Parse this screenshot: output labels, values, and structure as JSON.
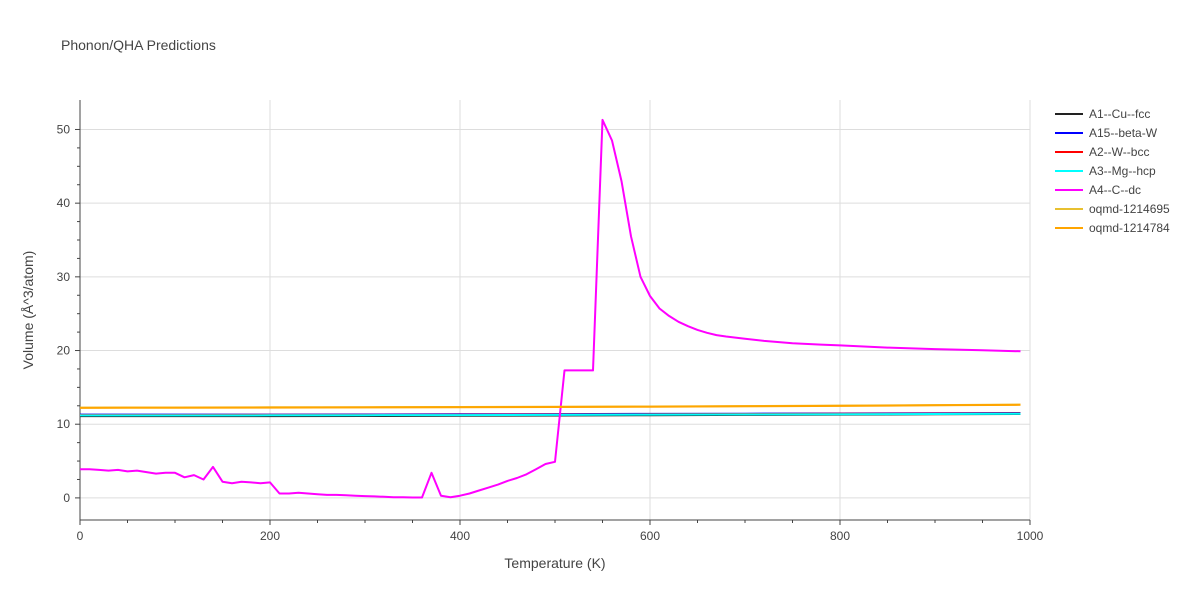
{
  "chart_data": {
    "type": "line",
    "title": "Phonon/QHA Predictions",
    "xlabel": "Temperature (K)",
    "ylabel": "Volume (Å^3/atom)",
    "xlim": [
      0,
      1000
    ],
    "ylim": [
      -3,
      54
    ],
    "x_ticks": [
      0,
      200,
      400,
      600,
      800,
      1000
    ],
    "x_tick_labels": [
      "0",
      "200",
      "400",
      "600",
      "800",
      "1000"
    ],
    "y_ticks": [
      0,
      10,
      20,
      30,
      40,
      50
    ],
    "y_tick_labels": [
      "0",
      "10",
      "20",
      "30",
      "40",
      "50"
    ],
    "grid": true,
    "legend_position": "right",
    "series": [
      {
        "name": "A1--Cu--fcc",
        "color": "#222222",
        "x": [
          0,
          100,
          200,
          300,
          400,
          500,
          600,
          700,
          800,
          900,
          990
        ],
        "y": [
          11.1,
          11.1,
          11.1,
          11.12,
          11.15,
          11.18,
          11.22,
          11.26,
          11.3,
          11.34,
          11.38
        ]
      },
      {
        "name": "A15--beta-W",
        "color": "#0000ff",
        "x": [
          0,
          100,
          200,
          300,
          400,
          500,
          600,
          700,
          800,
          900,
          990
        ],
        "y": [
          11.3,
          11.3,
          11.31,
          11.32,
          11.34,
          11.37,
          11.4,
          11.43,
          11.46,
          11.49,
          11.52
        ]
      },
      {
        "name": "A2--W--bcc",
        "color": "#ff0000",
        "x": [
          0,
          100,
          200,
          300,
          400,
          500,
          600,
          700,
          800,
          900,
          990
        ],
        "y": [
          11.25,
          11.25,
          11.26,
          11.27,
          11.29,
          11.32,
          11.35,
          11.38,
          11.41,
          11.44,
          11.47
        ]
      },
      {
        "name": "A3--Mg--hcp",
        "color": "#00ffff",
        "x": [
          0,
          100,
          200,
          300,
          400,
          500,
          600,
          700,
          800,
          900,
          990
        ],
        "y": [
          11.2,
          11.2,
          11.21,
          11.22,
          11.24,
          11.27,
          11.3,
          11.33,
          11.36,
          11.39,
          11.42
        ]
      },
      {
        "name": "A4--C--dc",
        "color": "#ff00ff",
        "x": [
          0,
          10,
          20,
          30,
          40,
          50,
          60,
          70,
          80,
          90,
          100,
          110,
          120,
          130,
          140,
          150,
          160,
          170,
          180,
          190,
          200,
          210,
          220,
          230,
          240,
          250,
          260,
          270,
          280,
          290,
          300,
          310,
          320,
          330,
          340,
          350,
          360,
          370,
          380,
          390,
          400,
          410,
          420,
          430,
          440,
          450,
          460,
          470,
          480,
          490,
          500,
          510,
          520,
          530,
          540,
          550,
          560,
          570,
          580,
          590,
          600,
          610,
          620,
          630,
          640,
          650,
          660,
          670,
          680,
          700,
          720,
          750,
          780,
          800,
          850,
          900,
          950,
          990
        ],
        "y": [
          3.9,
          3.9,
          3.8,
          3.7,
          3.8,
          3.6,
          3.7,
          3.5,
          3.3,
          3.4,
          3.4,
          2.8,
          3.1,
          2.5,
          4.2,
          2.2,
          2.0,
          2.2,
          2.1,
          2.0,
          2.1,
          0.6,
          0.6,
          0.7,
          0.6,
          0.5,
          0.4,
          0.4,
          0.35,
          0.3,
          0.25,
          0.2,
          0.15,
          0.1,
          0.08,
          0.05,
          0.05,
          3.4,
          0.3,
          0.1,
          0.3,
          0.6,
          1.0,
          1.4,
          1.8,
          2.3,
          2.7,
          3.2,
          3.9,
          4.6,
          4.9,
          17.3,
          17.3,
          17.3,
          17.3,
          51.3,
          48.5,
          43.0,
          35.5,
          30.0,
          27.4,
          25.7,
          24.7,
          23.9,
          23.3,
          22.8,
          22.4,
          22.1,
          21.9,
          21.6,
          21.3,
          21.0,
          20.8,
          20.7,
          20.4,
          20.2,
          20.05,
          19.9
        ]
      },
      {
        "name": "oqmd-1214695",
        "color": "#e8c030",
        "x": [
          0,
          100,
          200,
          300,
          400,
          500,
          600,
          700,
          800,
          900,
          990
        ],
        "y": [
          12.25,
          12.27,
          12.29,
          12.31,
          12.34,
          12.37,
          12.41,
          12.46,
          12.52,
          12.59,
          12.66
        ]
      },
      {
        "name": "oqmd-1214784",
        "color": "#ffa500",
        "x": [
          0,
          100,
          200,
          300,
          400,
          500,
          600,
          700,
          800,
          900,
          990
        ],
        "y": [
          12.22,
          12.24,
          12.26,
          12.28,
          12.31,
          12.34,
          12.38,
          12.43,
          12.49,
          12.56,
          12.63
        ]
      }
    ]
  }
}
